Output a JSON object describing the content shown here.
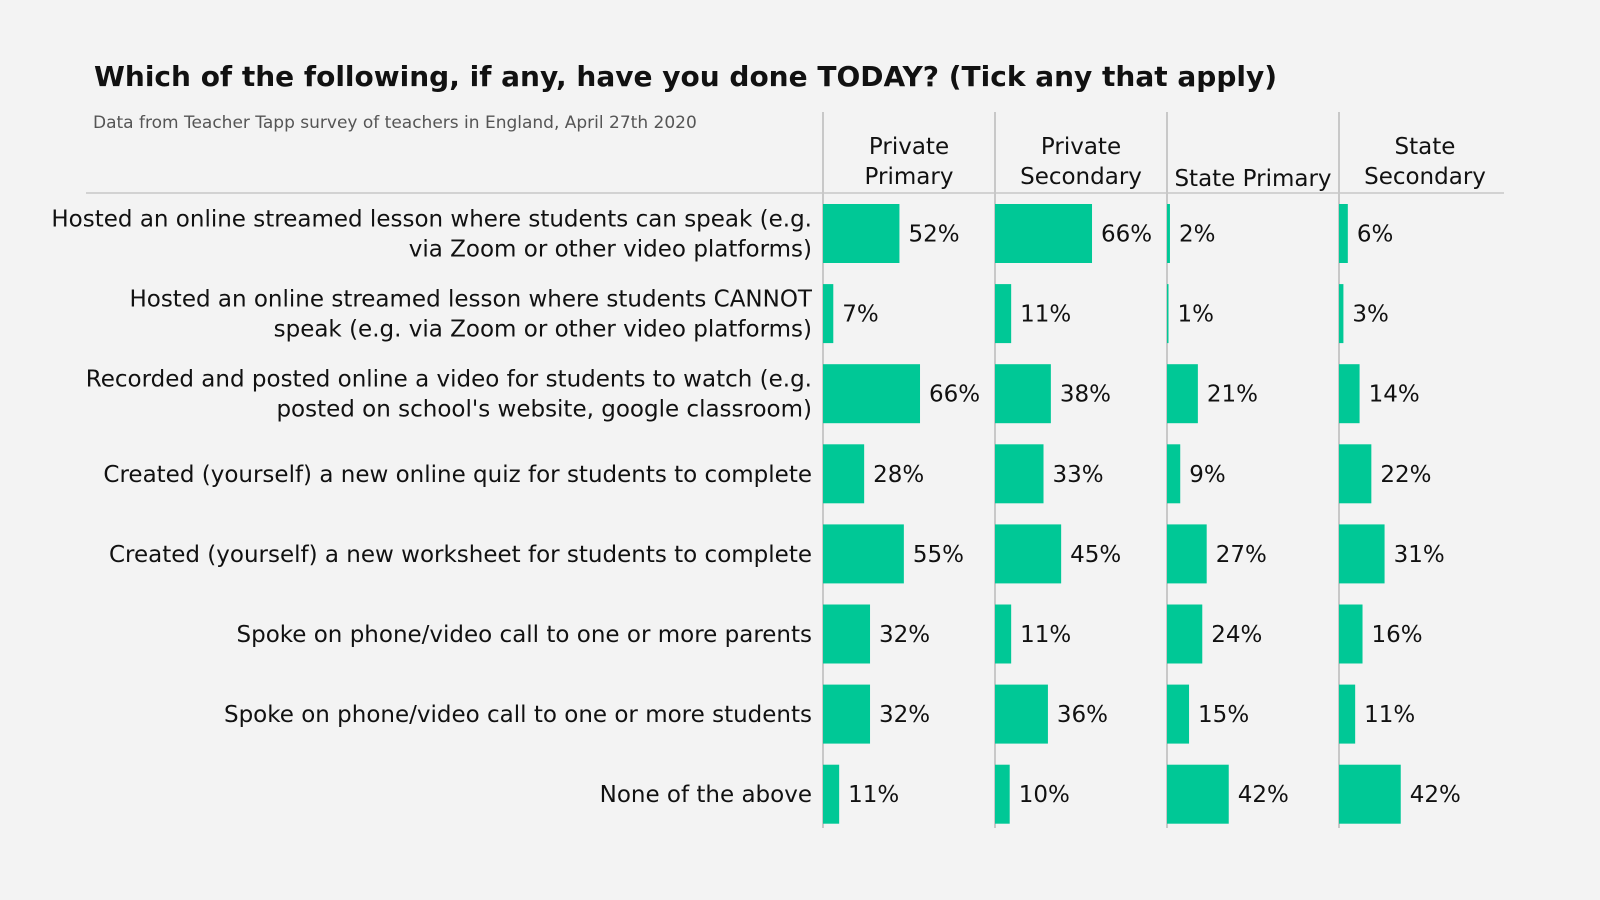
{
  "chart_data": {
    "type": "bar",
    "title": "Which of the following, if any, have you done TODAY? (Tick any that apply)",
    "subtitle": "Data from Teacher Tapp survey of teachers in England, April 27th 2020",
    "bar_color": "#00c896",
    "value_suffix": "%",
    "xlim": [
      0,
      100
    ],
    "categories": [
      [
        "Hosted an online streamed lesson where students can speak (e.g.",
        "via Zoom or other video platforms)"
      ],
      [
        "Hosted an online streamed lesson where students CANNOT",
        "speak (e.g. via Zoom or other video platforms)"
      ],
      [
        "Recorded and posted online a video for students to watch (e.g.",
        "posted on school's website, google classroom)"
      ],
      [
        "Created (yourself) a new online quiz for students to complete"
      ],
      [
        "Created (yourself) a new worksheet for students to complete"
      ],
      [
        "Spoke on phone/video call to one or more parents"
      ],
      [
        "Spoke on phone/video call to one or more students"
      ],
      [
        "None of the above"
      ]
    ],
    "series": [
      {
        "name": [
          "Private",
          "Primary"
        ],
        "values": [
          52,
          7,
          66,
          28,
          55,
          32,
          32,
          11
        ]
      },
      {
        "name": [
          "Private",
          "Secondary"
        ],
        "values": [
          66,
          11,
          38,
          33,
          45,
          11,
          36,
          10
        ]
      },
      {
        "name": [
          "State Primary"
        ],
        "values": [
          2,
          1,
          21,
          9,
          27,
          24,
          15,
          42
        ]
      },
      {
        "name": [
          "State",
          "Secondary"
        ],
        "values": [
          6,
          3,
          14,
          22,
          31,
          16,
          11,
          42
        ]
      }
    ]
  }
}
